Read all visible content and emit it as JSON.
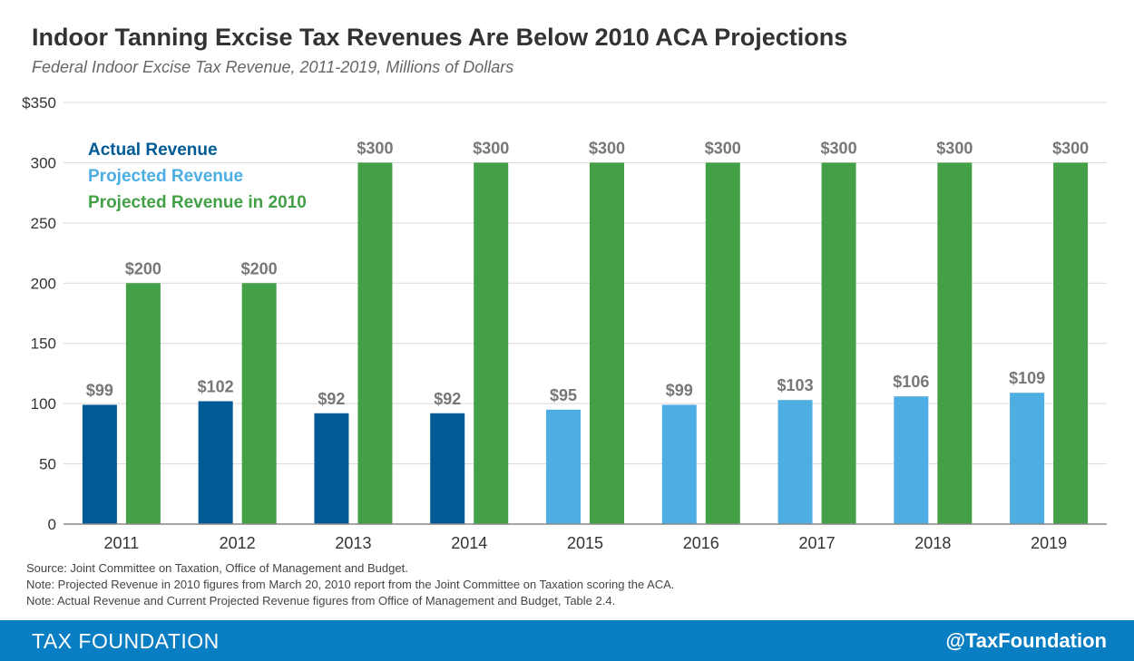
{
  "chart_data": {
    "type": "bar",
    "title": "Indoor Tanning Excise Tax Revenues Are Below 2010 ACA Projections",
    "subtitle": "Federal Indoor Excise Tax Revenue, 2011-2019, Millions of Dollars",
    "categories": [
      "2011",
      "2012",
      "2013",
      "2014",
      "2015",
      "2016",
      "2017",
      "2018",
      "2019"
    ],
    "series": [
      {
        "name": "Actual Revenue / Projected Revenue",
        "values": [
          99,
          102,
          92,
          92,
          95,
          99,
          103,
          106,
          109
        ],
        "labels": [
          "$99",
          "$102",
          "$92",
          "$92",
          "$95",
          "$99",
          "$103",
          "$106",
          "$109"
        ],
        "kinds": [
          "actual",
          "actual",
          "actual",
          "actual",
          "projected",
          "projected",
          "projected",
          "projected",
          "projected"
        ]
      },
      {
        "name": "Projected Revenue in 2010",
        "values": [
          200,
          200,
          300,
          300,
          300,
          300,
          300,
          300,
          300
        ],
        "labels": [
          "$200",
          "$200",
          "$300",
          "$300",
          "$300",
          "$300",
          "$300",
          "$300",
          "$300"
        ],
        "kinds": [
          "p2010",
          "p2010",
          "p2010",
          "p2010",
          "p2010",
          "p2010",
          "p2010",
          "p2010",
          "p2010"
        ]
      }
    ],
    "legend": [
      {
        "label": "Actual Revenue",
        "kind": "actual"
      },
      {
        "label": "Projected Revenue",
        "kind": "projected"
      },
      {
        "label": "Projected Revenue in 2010",
        "kind": "p2010"
      }
    ],
    "legend_position": "top-left",
    "ylim": [
      0,
      350
    ],
    "yticks": [
      0,
      50,
      100,
      150,
      200,
      250,
      300,
      350
    ],
    "ytick_labels": [
      "0",
      "50",
      "100",
      "150",
      "200",
      "250",
      "300",
      "$350"
    ],
    "grid": true,
    "colors": {
      "actual": "#005a96",
      "projected": "#4eaee3",
      "p2010": "#43a047"
    },
    "xlabel": "",
    "ylabel": ""
  },
  "notes": [
    "Source: Joint Committee on Taxation, Office of Management and Budget.",
    "Note: Projected Revenue in 2010 figures from March 20, 2010 report from the Joint Committee on Taxation scoring the ACA.",
    "Note: Actual Revenue and Current Projected Revenue figures from Office of Management and Budget, Table 2.4."
  ],
  "footer": {
    "brand": "TAX FOUNDATION",
    "handle": "@TaxFoundation",
    "color": "#0a7ec2"
  }
}
